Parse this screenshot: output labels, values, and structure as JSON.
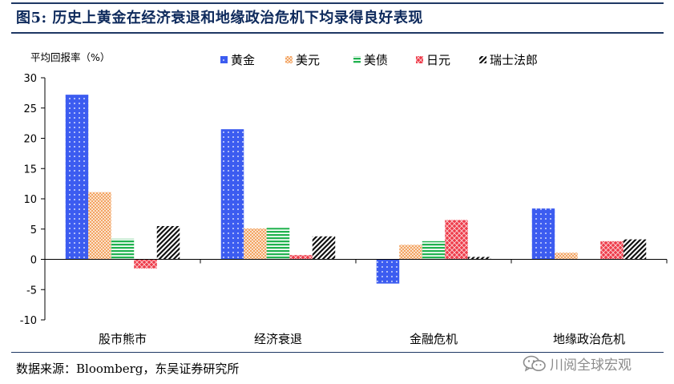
{
  "figure": {
    "title": "图5:  历史上黄金在经济衰退和地缘政治危机下均录得良好表现",
    "source": "数据来源：Bloomberg，东吴证券研究所",
    "watermark": "川阅全球宏观",
    "watermark_icon": "wechat-icon"
  },
  "colors": {
    "rule": "#1f3864",
    "title": "#0e2a5c",
    "黄金": "#3c5cf0",
    "美元": "#f3a463",
    "美债": "#21b24f",
    "日元": "#ee3b4a",
    "瑞士法郎": "#111111"
  },
  "chart_data": {
    "type": "bar",
    "ylabel": "平均回报率（%）",
    "ylim": [
      -10,
      30
    ],
    "yticks": [
      -10,
      -5,
      0,
      5,
      10,
      15,
      20,
      25,
      30
    ],
    "grid": false,
    "legend_position": "top",
    "categories": [
      "股市熊市",
      "经济衰退",
      "金融危机",
      "地缘政治危机"
    ],
    "series": [
      {
        "name": "黄金",
        "values": [
          27.2,
          21.5,
          -4.0,
          8.4
        ],
        "pattern": "dots"
      },
      {
        "name": "美元",
        "values": [
          11.1,
          5.1,
          2.4,
          1.1
        ],
        "pattern": "checker"
      },
      {
        "name": "美债",
        "values": [
          3.4,
          5.2,
          3.0,
          null
        ],
        "pattern": "hstripes"
      },
      {
        "name": "日元",
        "values": [
          -1.5,
          0.7,
          6.5,
          3.0
        ],
        "pattern": "xdiamond"
      },
      {
        "name": "瑞士法郎",
        "values": [
          5.5,
          3.8,
          0.4,
          3.3
        ],
        "pattern": "diagstripes"
      }
    ]
  }
}
